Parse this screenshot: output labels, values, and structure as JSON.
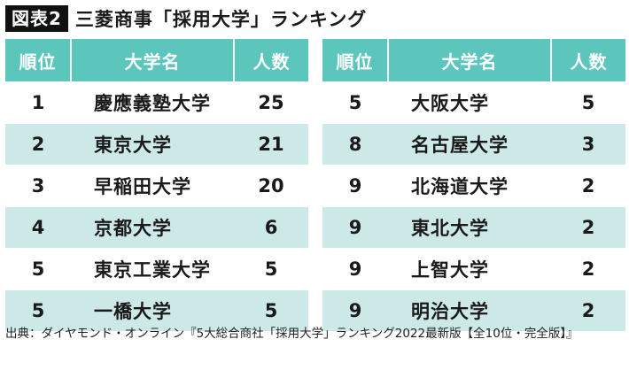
{
  "figure": {
    "badge": "図表2",
    "title": "三菱商事「採用大学」ランキング"
  },
  "table_headers": {
    "rank": "順位",
    "university": "大学名",
    "count": "人数"
  },
  "left_table": [
    {
      "rank": "1",
      "university": "慶應義塾大学",
      "count": "25"
    },
    {
      "rank": "2",
      "university": "東京大学",
      "count": "21"
    },
    {
      "rank": "3",
      "university": "早稲田大学",
      "count": "20"
    },
    {
      "rank": "4",
      "university": "京都大学",
      "count": "6"
    },
    {
      "rank": "5",
      "university": "東京工業大学",
      "count": "5"
    },
    {
      "rank": "5",
      "university": "一橋大学",
      "count": "5"
    }
  ],
  "right_table": [
    {
      "rank": "5",
      "university": "大阪大学",
      "count": "5"
    },
    {
      "rank": "8",
      "university": "名古屋大学",
      "count": "3"
    },
    {
      "rank": "9",
      "university": "北海道大学",
      "count": "2"
    },
    {
      "rank": "9",
      "university": "東北大学",
      "count": "2"
    },
    {
      "rank": "9",
      "university": "上智大学",
      "count": "2"
    },
    {
      "rank": "9",
      "university": "明治大学",
      "count": "2"
    }
  ],
  "source_note": "出典：ダイヤモンド・オンライン『5大総合商社「採用大学」ランキング2022最新版【全10位・完全版】』",
  "colors": {
    "header_bg": "#5cc6bd",
    "alt_row_bg": "#cce9e7",
    "badge_bg": "#111111"
  }
}
